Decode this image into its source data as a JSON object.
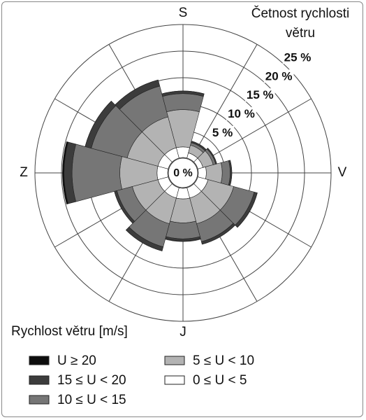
{
  "chart_data": {
    "type": "windrose",
    "title": "Četnost rychlosti větru",
    "legend_title": "Rychlost větru [m/s]",
    "categories": [
      "S",
      null,
      null,
      "V",
      null,
      null,
      "J",
      null,
      null,
      "Z",
      null,
      null
    ],
    "rlim": [
      0,
      25
    ],
    "rticks": [
      {
        "value": 0,
        "label": "0 %"
      },
      {
        "value": 5,
        "label": "5 %"
      },
      {
        "value": 10,
        "label": "10 %"
      },
      {
        "value": 15,
        "label": "15 %"
      },
      {
        "value": 20,
        "label": "20 %"
      },
      {
        "value": 25,
        "label": "25 %"
      }
    ],
    "series": [
      {
        "name": "0 ≤ U < 5",
        "color": "#ffffff",
        "values": [
          2,
          1,
          1,
          1.5,
          2,
          2,
          2,
          2,
          2,
          2,
          2,
          2
        ]
      },
      {
        "name": "5 ≤ U < 10",
        "color": "#b3b3b3",
        "values": [
          7,
          1.5,
          2,
          3,
          5,
          5,
          4.5,
          5,
          5,
          7,
          6,
          6
        ]
      },
      {
        "name": "10 ≤ U < 15",
        "color": "#767676",
        "values": [
          3,
          0.5,
          0.5,
          1.5,
          4,
          3.5,
          3,
          4.5,
          3,
          9,
          7,
          6
        ]
      },
      {
        "name": "15 ≤ U < 20",
        "color": "#3c3c3c",
        "values": [
          0.5,
          0.3,
          0.2,
          0.3,
          0.6,
          0.5,
          0.4,
          0.8,
          0.5,
          1.5,
          1.2,
          1.2
        ]
      },
      {
        "name": "U ≥ 20",
        "color": "#0d0d0d",
        "values": [
          0,
          0,
          0,
          0,
          0,
          0,
          0,
          0,
          0,
          0.3,
          0,
          0
        ]
      }
    ]
  }
}
